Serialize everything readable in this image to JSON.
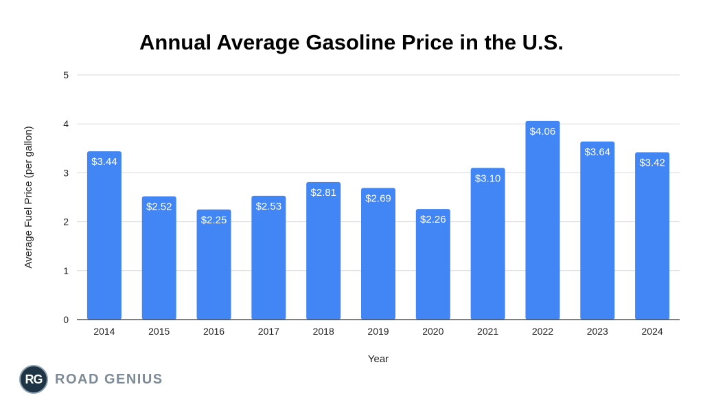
{
  "chart_data": {
    "type": "bar",
    "title": "Annual Average Gasoline Price in the U.S.",
    "xlabel": "Year",
    "ylabel": "Average Fuel Price (per gallon)",
    "categories": [
      "2014",
      "2015",
      "2016",
      "2017",
      "2018",
      "2019",
      "2020",
      "2021",
      "2022",
      "2023",
      "2024"
    ],
    "values": [
      3.44,
      2.52,
      2.25,
      2.53,
      2.81,
      2.69,
      2.26,
      3.1,
      4.06,
      3.64,
      3.42
    ],
    "data_labels": [
      "$3.44",
      "$2.52",
      "$2.25",
      "$2.53",
      "$2.81",
      "$2.69",
      "$2.26",
      "$3.10",
      "$4.06",
      "$3.64",
      "$3.42"
    ],
    "ylim": [
      0,
      5
    ],
    "yticks": [
      "0",
      "1",
      "2",
      "3",
      "4",
      "5"
    ],
    "grid": true,
    "legend": "none"
  },
  "colors": {
    "bar": "#4285f4",
    "grid": "#d9d9d9",
    "axis": "#333333",
    "label_inside": "#ffffff"
  },
  "brand": {
    "logo_text": "RG",
    "name": "ROAD GENIUS"
  }
}
